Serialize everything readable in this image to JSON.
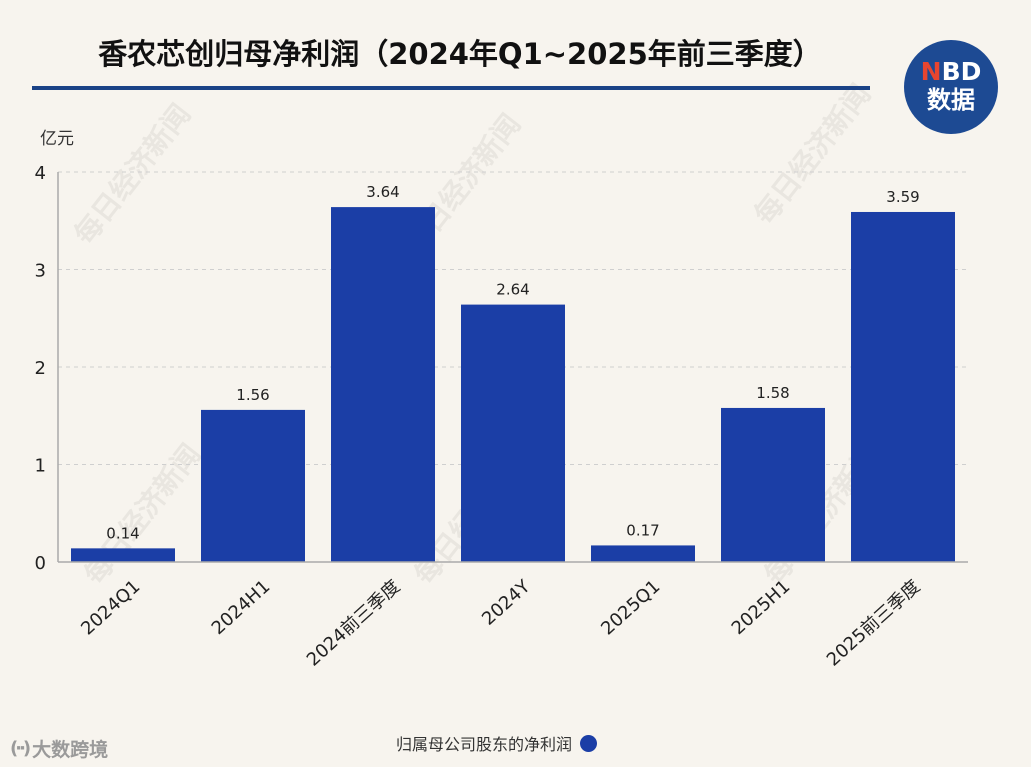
{
  "title": "香农芯创归母净利润（2024年Q1~2025年前三季度）",
  "logo": {
    "accent": "N",
    "rest": "BD",
    "bottom": "数据"
  },
  "watermark_text": "每日经济新闻",
  "footer_brand": "大数跨境",
  "brand_mark": "(··)",
  "chart_data": {
    "type": "bar",
    "title": "香农芯创归母净利润（2024年Q1~2025年前三季度）",
    "ylabel": "亿元",
    "xlabel": "",
    "ylim": [
      0,
      4
    ],
    "yticks": [
      "0",
      "1",
      "2",
      "3",
      "4"
    ],
    "grid": true,
    "legend_position": "bottom-center",
    "categories": [
      "2024Q1",
      "2024H1",
      "2024前三季度",
      "2024Y",
      "2025Q1",
      "2025H1",
      "2025前三季度"
    ],
    "series": [
      {
        "name": "归属母公司股东的净利润",
        "color": "#1b3ea6",
        "values": [
          0.14,
          1.56,
          3.64,
          2.64,
          0.17,
          1.58,
          3.59
        ],
        "labels": [
          "0.14",
          "1.56",
          "3.64",
          "2.64",
          "0.17",
          "1.58",
          "3.59"
        ]
      }
    ]
  }
}
